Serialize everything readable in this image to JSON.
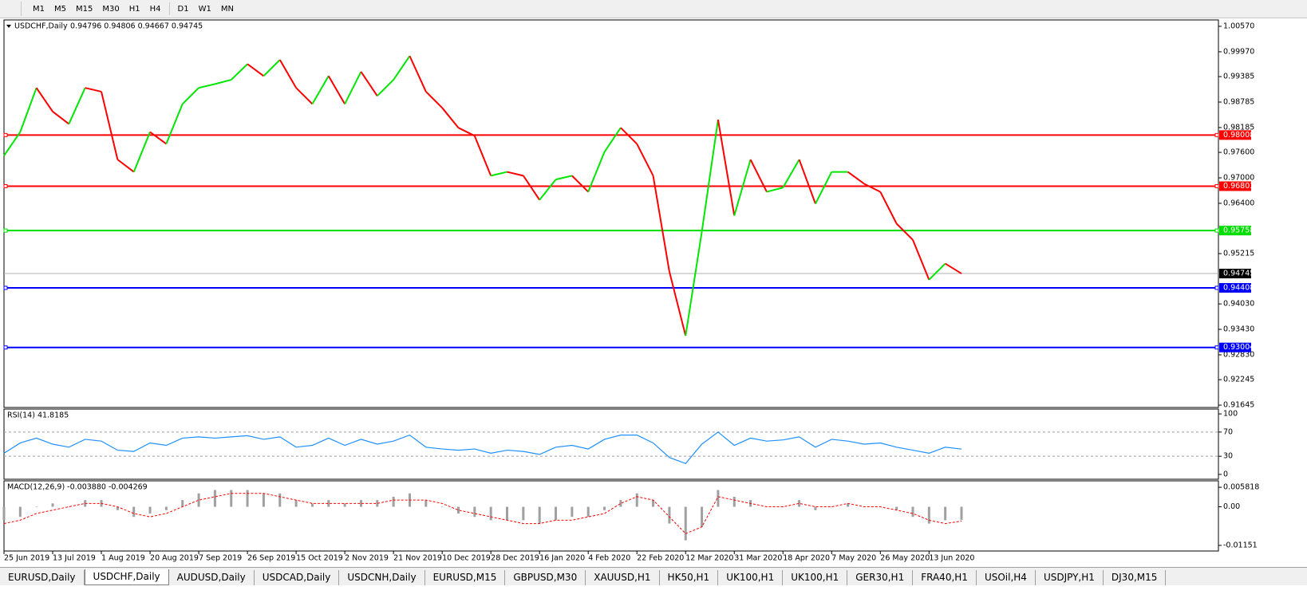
{
  "toolbar": {
    "timeframes": [
      "M1",
      "M5",
      "M15",
      "M30",
      "H1",
      "H4",
      "D1",
      "W1",
      "MN"
    ]
  },
  "chart_data": [
    {
      "type": "price",
      "title": "USDCHF,Daily",
      "subtitle": "0.94796 0.94806 0.94667 0.94745",
      "x": [
        "25 Jun 2019",
        null,
        null,
        "13 Jul 2019",
        null,
        null,
        "1 Aug 2019",
        null,
        null,
        "20 Aug 2019",
        null,
        null,
        "7 Sep 2019",
        null,
        null,
        "26 Sep 2019",
        null,
        null,
        "15 Oct 2019",
        null,
        null,
        "2 Nov 2019",
        null,
        null,
        "21 Nov 2019",
        null,
        null,
        "10 Dec 2019",
        null,
        null,
        "28 Dec 2019",
        null,
        null,
        "16 Jan 2020",
        null,
        null,
        "4 Feb 2020",
        null,
        null,
        "22 Feb 2020",
        null,
        null,
        "12 Mar 2020",
        null,
        null,
        "31 Mar 2020",
        null,
        null,
        "18 Apr 2020",
        null,
        null,
        "7 May 2020",
        null,
        null,
        "26 May 2020",
        null,
        null,
        "13 Jun 2020",
        null,
        null
      ],
      "values": [
        0.9752,
        0.9808,
        0.9912,
        0.9856,
        0.9827,
        0.9912,
        0.9903,
        0.9743,
        0.9714,
        0.9808,
        0.978,
        0.9874,
        0.9912,
        0.9921,
        0.9931,
        0.9968,
        0.994,
        0.9978,
        0.9912,
        0.9874,
        0.994,
        0.9874,
        0.995,
        0.9893,
        0.9931,
        0.9987,
        0.9903,
        0.9865,
        0.9818,
        0.9799,
        0.9705,
        0.9714,
        0.9705,
        0.9648,
        0.9696,
        0.9705,
        0.9667,
        0.9761,
        0.9818,
        0.978,
        0.9705,
        0.9479,
        0.9328,
        0.9573,
        0.9837,
        0.9611,
        0.9743,
        0.9667,
        0.9677,
        0.9743,
        0.9639,
        0.9714,
        0.9714,
        0.9686,
        0.9667,
        0.9592,
        0.9554,
        0.946,
        0.9498,
        0.94745
      ],
      "up_color": "#00e600",
      "down_color": "#ff0000",
      "ylim": [
        0.9159,
        1.0072
      ],
      "yticks": [
        {
          "value": 1.0057,
          "label": "1.00570"
        },
        {
          "value": 0.9997,
          "label": "0.99970"
        },
        0.99385,
        0.98785,
        0.98185,
        {
          "value": 0.976,
          "label": "0.97600"
        },
        {
          "value": 0.97,
          "label": "0.97000"
        },
        {
          "value": 0.964,
          "label": "0.96400"
        },
        0.95215,
        {
          "value": 0.9403,
          "label": "0.94030"
        },
        {
          "value": 0.9343,
          "label": "0.93430"
        },
        {
          "value": 0.9283,
          "label": "0.92830"
        },
        0.92245,
        0.91645
      ],
      "levels": [
        {
          "value": 0.98008,
          "color": "#ff0000"
        },
        {
          "value": 0.96803,
          "color": "#ff0000"
        },
        {
          "value": 0.95758,
          "color": "#00dd00"
        },
        {
          "value": 0.94408,
          "color": "#0000ff"
        },
        {
          "value": 0.93004,
          "color": "#0000ff"
        }
      ],
      "last_price": 0.94745
    },
    {
      "type": "line",
      "title": "RSI(14) 41.8185",
      "values": [
        35,
        52,
        60,
        50,
        45,
        58,
        55,
        40,
        38,
        52,
        48,
        60,
        62,
        60,
        62,
        64,
        58,
        62,
        45,
        48,
        60,
        48,
        58,
        50,
        55,
        65,
        45,
        42,
        40,
        42,
        35,
        40,
        38,
        33,
        45,
        48,
        42,
        58,
        65,
        65,
        52,
        28,
        18,
        50,
        70,
        48,
        60,
        55,
        57,
        62,
        45,
        58,
        55,
        50,
        52,
        45,
        40,
        35,
        45,
        41.8185
      ],
      "color": "#1e90ff",
      "ylim": [
        -8,
        108
      ],
      "yticks": [
        100,
        70,
        30,
        0
      ],
      "levels": [
        70,
        30
      ]
    },
    {
      "type": "macd",
      "title": "MACD(12,26,9) -0.003880 -0.004269",
      "histogram": [
        -0.004,
        -0.003,
        0,
        0.001,
        0,
        0.002,
        0.002,
        -0.001,
        -0.003,
        -0.002,
        -0.001,
        0.002,
        0.004,
        0.005,
        0.005,
        0.005,
        0.004,
        0.004,
        0.002,
        0.001,
        0.002,
        0.001,
        0.002,
        0.002,
        0.003,
        0.004,
        0.002,
        0,
        -0.002,
        -0.003,
        -0.004,
        -0.004,
        -0.004,
        -0.005,
        -0.004,
        -0.003,
        -0.003,
        -0.001,
        0.002,
        0.004,
        0.002,
        -0.005,
        -0.01,
        -0.006,
        0.005,
        0.003,
        0.002,
        0,
        0,
        0.002,
        -0.001,
        0,
        0.001,
        0,
        0,
        -0.001,
        -0.003,
        -0.005,
        -0.004,
        -0.00388
      ],
      "signal": [
        -0.005,
        -0.004,
        -0.002,
        -0.001,
        0,
        0.001,
        0.001,
        0,
        -0.002,
        -0.003,
        -0.002,
        0,
        0.002,
        0.003,
        0.004,
        0.004,
        0.004,
        0.003,
        0.002,
        0.001,
        0.001,
        0.001,
        0.001,
        0.001,
        0.002,
        0.002,
        0.002,
        0.001,
        -0.001,
        -0.002,
        -0.003,
        -0.004,
        -0.005,
        -0.005,
        -0.004,
        -0.004,
        -0.003,
        -0.002,
        0.001,
        0.003,
        0.002,
        -0.003,
        -0.008,
        -0.006,
        0.003,
        0.002,
        0.001,
        0,
        0,
        0.001,
        0,
        0,
        0.001,
        0,
        0,
        -0.001,
        -0.002,
        -0.004,
        -0.005,
        -0.004269
      ],
      "histogram_color": "#a0a0a0",
      "signal_color": "#ff0000",
      "ylim": [
        -0.01319,
        0.00774
      ],
      "yticks": [
        0.005818,
        {
          "value": 0,
          "label": "0.00"
        },
        -0.01151
      ]
    }
  ],
  "tabs": {
    "items": [
      "EURUSD,Daily",
      "USDCHF,Daily",
      "AUDUSD,Daily",
      "USDCAD,Daily",
      "USDCNH,Daily",
      "EURUSD,M15",
      "GBPUSD,M30",
      "XAUUSD,H1",
      "HK50,H1",
      "UK100,H1",
      "UK100,H1",
      "GER30,H1",
      "FRA40,H1",
      "USOil,H4",
      "USDJPY,H1",
      "DJ30,M15"
    ],
    "active": 1
  }
}
